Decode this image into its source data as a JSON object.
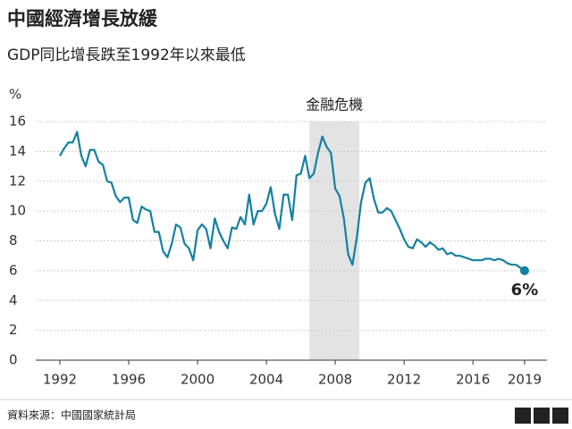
{
  "chart_data": {
    "type": "line",
    "title": "中國經濟增長放緩",
    "subtitle": "GDP同比增長跌至1992年以來最低",
    "y_label": "%",
    "shade": {
      "label": "金融危機",
      "x": [
        2006.5,
        2009.4
      ],
      "color": "#e3e3e3"
    },
    "end_label": "6%",
    "source": "資料來源：中國國家統計局",
    "logo": [
      "B",
      "B",
      "C"
    ],
    "xlim": [
      1990.6,
      2020.3
    ],
    "xticks": [
      1992,
      1996,
      2000,
      2004,
      2008,
      2012,
      2016,
      2019
    ],
    "ylim": [
      0,
      16
    ],
    "yticks": [
      0,
      2,
      4,
      6,
      8,
      10,
      12,
      14,
      16
    ],
    "grid": true,
    "x": [
      1992,
      1992.25,
      1992.5,
      1992.75,
      1993,
      1993.25,
      1993.5,
      1993.75,
      1994,
      1994.25,
      1994.5,
      1994.75,
      1995,
      1995.25,
      1995.5,
      1995.75,
      1996,
      1996.25,
      1996.5,
      1996.75,
      1997,
      1997.25,
      1997.5,
      1997.75,
      1998,
      1998.25,
      1998.5,
      1998.75,
      1999,
      1999.25,
      1999.5,
      1999.75,
      2000,
      2000.25,
      2000.5,
      2000.75,
      2001,
      2001.25,
      2001.5,
      2001.75,
      2002,
      2002.25,
      2002.5,
      2002.75,
      2003,
      2003.25,
      2003.5,
      2003.75,
      2004,
      2004.25,
      2004.5,
      2004.75,
      2005,
      2005.25,
      2005.5,
      2005.75,
      2006,
      2006.25,
      2006.5,
      2006.75,
      2007,
      2007.25,
      2007.5,
      2007.75,
      2008,
      2008.25,
      2008.5,
      2008.75,
      2009,
      2009.25,
      2009.5,
      2009.75,
      2010,
      2010.25,
      2010.5,
      2010.75,
      2011,
      2011.25,
      2011.5,
      2011.75,
      2012,
      2012.25,
      2012.5,
      2012.75,
      2013,
      2013.25,
      2013.5,
      2013.75,
      2014,
      2014.25,
      2014.5,
      2014.75,
      2015,
      2015.25,
      2015.5,
      2015.75,
      2016,
      2016.25,
      2016.5,
      2016.75,
      2017,
      2017.25,
      2017.5,
      2017.75,
      2018,
      2018.25,
      2018.5,
      2018.75,
      2019
    ],
    "series": [
      {
        "color": "#1380a1",
        "values": [
          13.7,
          14.2,
          14.6,
          14.6,
          15.3,
          13.7,
          13.0,
          14.1,
          14.1,
          13.3,
          13.1,
          12.0,
          11.9,
          11.0,
          10.6,
          10.9,
          10.9,
          9.4,
          9.2,
          10.3,
          10.1,
          10.0,
          8.6,
          8.6,
          7.3,
          6.9,
          7.8,
          9.1,
          8.9,
          7.8,
          7.5,
          6.7,
          8.7,
          9.1,
          8.8,
          7.5,
          9.5,
          8.6,
          8.0,
          7.5,
          8.9,
          8.8,
          9.6,
          9.1,
          11.1,
          9.1,
          10.0,
          10.0,
          10.5,
          11.6,
          9.8,
          8.8,
          11.1,
          11.1,
          9.4,
          12.4,
          12.5,
          13.7,
          12.2,
          12.5,
          13.9,
          15.0,
          14.3,
          13.9,
          11.5,
          11.0,
          9.5,
          7.1,
          6.4,
          8.2,
          10.6,
          11.9,
          12.2,
          10.8,
          9.9,
          9.9,
          10.2,
          10.0,
          9.4,
          8.8,
          8.1,
          7.6,
          7.5,
          8.1,
          7.9,
          7.6,
          7.9,
          7.7,
          7.4,
          7.5,
          7.1,
          7.2,
          7.0,
          7.0,
          6.9,
          6.8,
          6.7,
          6.7,
          6.7,
          6.8,
          6.8,
          6.7,
          6.8,
          6.7,
          6.5,
          6.4,
          6.4,
          6.2,
          6.0
        ]
      }
    ]
  }
}
